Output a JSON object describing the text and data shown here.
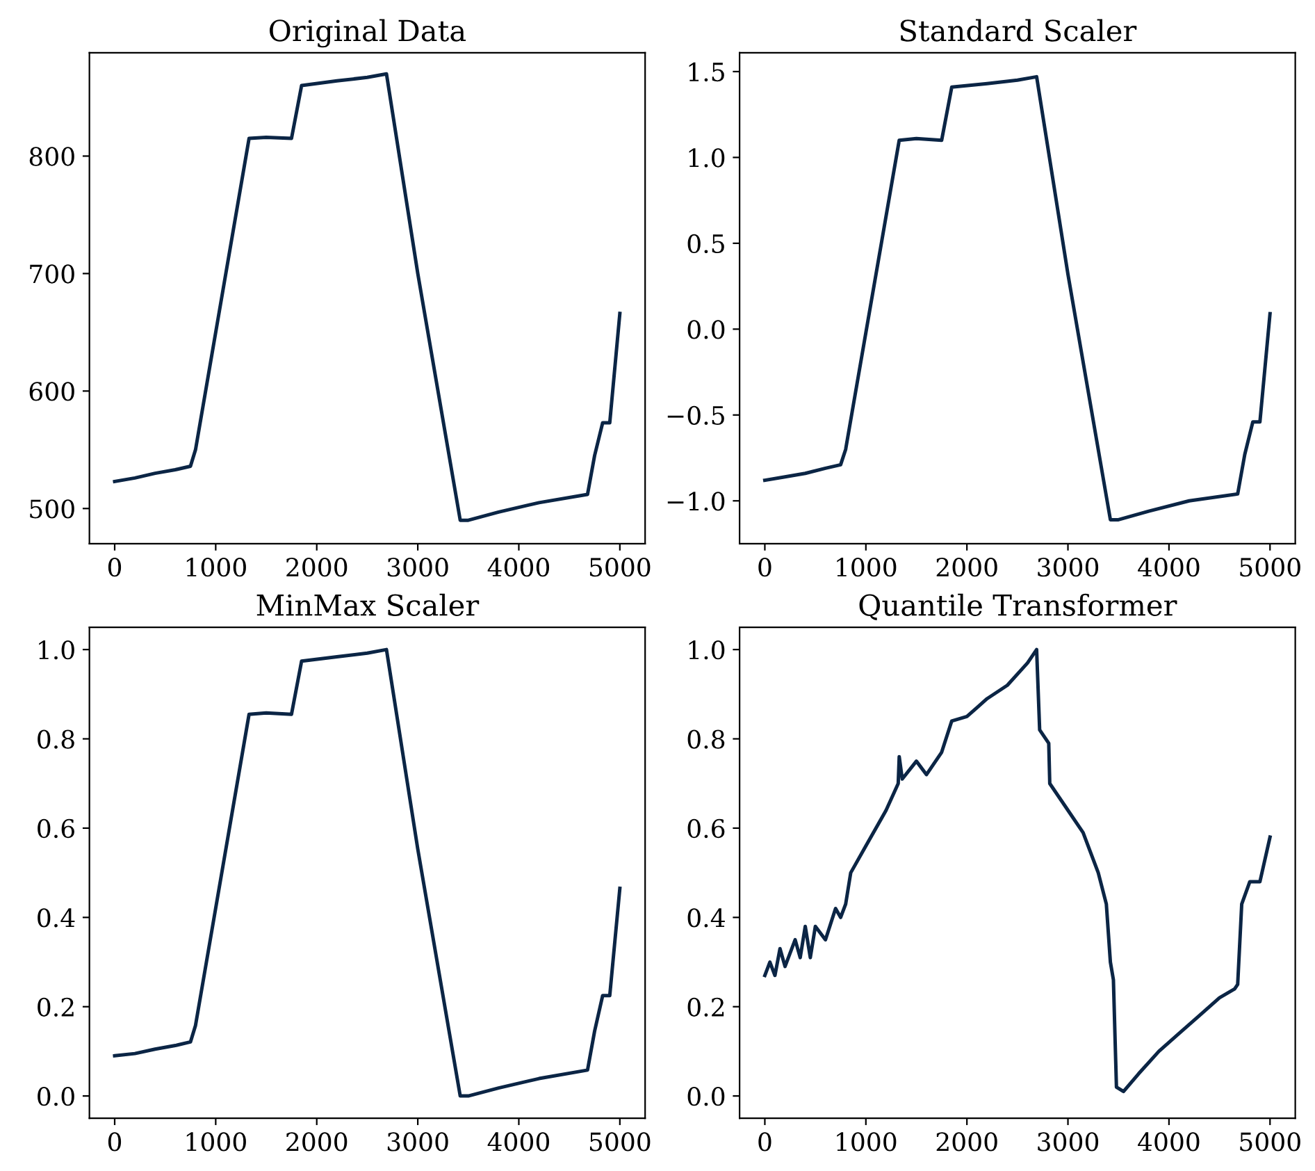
{
  "chart_data": [
    {
      "type": "line",
      "title": "Original Data",
      "xlim": [
        -250,
        5250
      ],
      "xticks": [
        0,
        1000,
        2000,
        3000,
        4000,
        5000
      ],
      "ylim": [
        470,
        888
      ],
      "yticks": [
        500,
        600,
        700,
        800
      ],
      "grid": false,
      "legend": false,
      "series": [
        {
          "color": "#0b2545",
          "x": [
            0,
            200,
            400,
            600,
            750,
            800,
            1000,
            1330,
            1500,
            1750,
            1850,
            2200,
            2500,
            2690,
            3000,
            3420,
            3500,
            3800,
            4200,
            4680,
            4750,
            4830,
            4900,
            5000
          ],
          "values": [
            523,
            526,
            530,
            533,
            536,
            550,
            650,
            815,
            816,
            815,
            860,
            864,
            867,
            870,
            700,
            490,
            490,
            497,
            505,
            512,
            545,
            573,
            573,
            666
          ]
        }
      ]
    },
    {
      "type": "line",
      "title": "Standard Scaler",
      "xlim": [
        -250,
        5250
      ],
      "xticks": [
        0,
        1000,
        2000,
        3000,
        4000,
        5000
      ],
      "ylim": [
        -1.25,
        1.61
      ],
      "yticks": [
        {
          "value": -1.0,
          "label": "−1.0"
        },
        {
          "value": -0.5,
          "label": "−0.5"
        },
        {
          "value": 0.0,
          "label": "0.0"
        },
        {
          "value": 0.5,
          "label": "0.5"
        },
        {
          "value": 1.0,
          "label": "1.0"
        },
        {
          "value": 1.5,
          "label": "1.5"
        }
      ],
      "grid": false,
      "legend": false,
      "series": [
        {
          "color": "#0b2545",
          "x": [
            0,
            200,
            400,
            600,
            750,
            800,
            1000,
            1330,
            1500,
            1750,
            1850,
            2200,
            2500,
            2690,
            3000,
            3420,
            3500,
            3800,
            4200,
            4680,
            4750,
            4830,
            4900,
            5000
          ],
          "values": [
            -0.88,
            -0.86,
            -0.84,
            -0.81,
            -0.79,
            -0.7,
            -0.02,
            1.1,
            1.11,
            1.1,
            1.41,
            1.43,
            1.45,
            1.47,
            0.32,
            -1.11,
            -1.11,
            -1.06,
            -1.0,
            -0.96,
            -0.73,
            -0.54,
            -0.54,
            0.09
          ]
        }
      ]
    },
    {
      "type": "line",
      "title": "MinMax Scaler",
      "xlim": [
        -250,
        5250
      ],
      "xticks": [
        0,
        1000,
        2000,
        3000,
        4000,
        5000
      ],
      "ylim": [
        -0.05,
        1.05
      ],
      "yticks": [
        {
          "value": 0.0,
          "label": "0.0"
        },
        {
          "value": 0.2,
          "label": "0.2"
        },
        {
          "value": 0.4,
          "label": "0.4"
        },
        {
          "value": 0.6,
          "label": "0.6"
        },
        {
          "value": 0.8,
          "label": "0.8"
        },
        {
          "value": 1.0,
          "label": "1.0"
        }
      ],
      "grid": false,
      "legend": false,
      "series": [
        {
          "color": "#0b2545",
          "x": [
            0,
            200,
            400,
            600,
            750,
            800,
            1000,
            1330,
            1500,
            1750,
            1850,
            2200,
            2500,
            2690,
            3000,
            3420,
            3500,
            3800,
            4200,
            4680,
            4750,
            4830,
            4900,
            5000
          ],
          "values": [
            0.09,
            0.095,
            0.105,
            0.113,
            0.121,
            0.158,
            0.421,
            0.855,
            0.858,
            0.855,
            0.974,
            0.984,
            0.992,
            1.0,
            0.553,
            0.0,
            0.0,
            0.018,
            0.039,
            0.058,
            0.145,
            0.225,
            0.225,
            0.465
          ]
        }
      ]
    },
    {
      "type": "line",
      "title": "Quantile Transformer",
      "xlim": [
        -250,
        5250
      ],
      "xticks": [
        0,
        1000,
        2000,
        3000,
        4000,
        5000
      ],
      "ylim": [
        -0.05,
        1.05
      ],
      "yticks": [
        {
          "value": 0.0,
          "label": "0.0"
        },
        {
          "value": 0.2,
          "label": "0.2"
        },
        {
          "value": 0.4,
          "label": "0.4"
        },
        {
          "value": 0.6,
          "label": "0.6"
        },
        {
          "value": 0.8,
          "label": "0.8"
        },
        {
          "value": 1.0,
          "label": "1.0"
        }
      ],
      "grid": false,
      "legend": false,
      "series": [
        {
          "color": "#0b2545",
          "x": [
            0,
            50,
            100,
            150,
            200,
            300,
            350,
            400,
            450,
            500,
            600,
            700,
            750,
            800,
            850,
            1000,
            1200,
            1320,
            1330,
            1360,
            1500,
            1600,
            1750,
            1850,
            2000,
            2100,
            2200,
            2400,
            2600,
            2690,
            2720,
            2810,
            2820,
            3000,
            3150,
            3300,
            3380,
            3420,
            3450,
            3480,
            3550,
            3700,
            3900,
            4100,
            4300,
            4500,
            4650,
            4680,
            4720,
            4800,
            4900,
            5000
          ],
          "values": [
            0.27,
            0.3,
            0.27,
            0.33,
            0.29,
            0.35,
            0.31,
            0.38,
            0.31,
            0.38,
            0.35,
            0.42,
            0.4,
            0.43,
            0.5,
            0.56,
            0.64,
            0.7,
            0.76,
            0.71,
            0.75,
            0.72,
            0.77,
            0.84,
            0.85,
            0.87,
            0.89,
            0.92,
            0.97,
            1.0,
            0.82,
            0.79,
            0.7,
            0.64,
            0.59,
            0.5,
            0.43,
            0.3,
            0.26,
            0.02,
            0.01,
            0.05,
            0.1,
            0.14,
            0.18,
            0.22,
            0.24,
            0.25,
            0.43,
            0.48,
            0.48,
            0.58
          ]
        }
      ]
    }
  ]
}
